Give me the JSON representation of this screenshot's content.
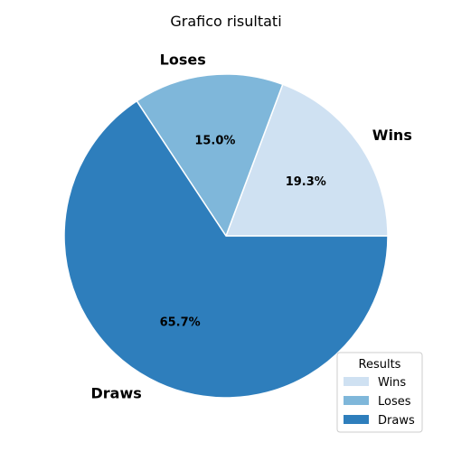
{
  "chart_data": {
    "type": "pie",
    "title": "Grafico risultati",
    "slices": [
      {
        "label": "Wins",
        "value": 19.3,
        "pct_label": "19.3%",
        "color": "#cfe1f2"
      },
      {
        "label": "Loses",
        "value": 15.0,
        "pct_label": "15.0%",
        "color": "#7fb7da"
      },
      {
        "label": "Draws",
        "value": 65.7,
        "pct_label": "65.7%",
        "color": "#2e7ebc"
      }
    ],
    "start_angle_deg": 0,
    "direction": "counterclockwise",
    "legend": {
      "title": "Results",
      "placement": "lower-right",
      "entries": [
        "Wins",
        "Loses",
        "Draws"
      ]
    }
  }
}
